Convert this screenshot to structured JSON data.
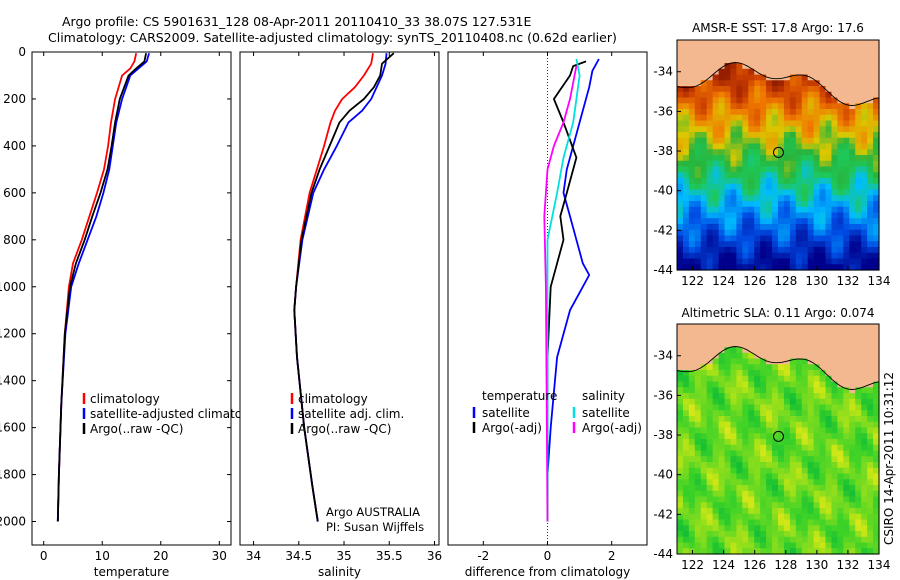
{
  "header": {
    "line1": "Argo profile: CS 5901631_128 08-Apr-2011 20110410_33 38.07S 127.531E",
    "line2": "Climatology: CARS2009. Satellite-adjusted climatology: synTS_20110408.nc (0.62d earlier)"
  },
  "side_label": "CSIRO 14-Apr-2011 10:31:12",
  "colors": {
    "climatology": "#ff0000",
    "satellite": "#0000ff",
    "argo": "#000000",
    "cyan": "#00e0e0",
    "magenta": "#ff00ff",
    "land": "#f4b890"
  },
  "chart_data": [
    {
      "type": "line",
      "id": "temperature",
      "xlabel": "temperature",
      "ylabel": "",
      "xlim": [
        -2,
        32
      ],
      "ylim": [
        2100,
        0
      ],
      "xticks": [
        0,
        10,
        20,
        30
      ],
      "yticks": [
        0,
        200,
        400,
        600,
        800,
        1000,
        1200,
        1400,
        1600,
        1800,
        2000
      ],
      "legend": {
        "position": "lower-right",
        "entries": [
          "climatology",
          "satellite-adjusted climatology",
          "Argo(..raw -QC)"
        ]
      },
      "series": [
        {
          "name": "climatology",
          "color": "#ff0000",
          "x": [
            15.8,
            15.5,
            14.8,
            13.4,
            12.2,
            11.5,
            11.0,
            10.3,
            9.1,
            7.8,
            6.5,
            5.0,
            4.3,
            3.6,
            3.0,
            2.6,
            2.4
          ],
          "y": [
            5,
            40,
            70,
            100,
            200,
            300,
            400,
            500,
            600,
            700,
            800,
            900,
            1000,
            1200,
            1500,
            1800,
            2000
          ]
        },
        {
          "name": "satellite-adjusted climatology",
          "color": "#0000ff",
          "x": [
            18.0,
            17.6,
            16.2,
            14.8,
            13.4,
            12.4,
            11.8,
            11.2,
            10.2,
            9.0,
            7.5,
            6.0,
            4.7,
            3.7,
            3.0,
            2.6,
            2.4
          ],
          "y": [
            5,
            40,
            70,
            100,
            200,
            300,
            400,
            500,
            600,
            700,
            800,
            900,
            1000,
            1200,
            1500,
            1800,
            2000
          ]
        },
        {
          "name": "Argo(..raw -QC)",
          "color": "#000000",
          "x": [
            17.5,
            17.2,
            15.8,
            14.5,
            13.0,
            12.2,
            11.6,
            10.9,
            9.7,
            8.3,
            7.0,
            5.5,
            4.5,
            3.6,
            3.0,
            2.6,
            2.4
          ],
          "y": [
            5,
            40,
            70,
            100,
            200,
            300,
            400,
            500,
            600,
            700,
            800,
            900,
            1000,
            1200,
            1500,
            1800,
            2000
          ]
        }
      ]
    },
    {
      "type": "line",
      "id": "salinity",
      "xlabel": "salinity",
      "ylabel": "",
      "xlim": [
        33.85,
        36.05
      ],
      "ylim": [
        2100,
        0
      ],
      "xticks": [
        34,
        34.5,
        35,
        35.5,
        36
      ],
      "yticks": [],
      "legend": {
        "position": "lower-right",
        "entries": [
          "climatology",
          "satellite adj. clim.",
          "Argo(..raw -QC)"
        ]
      },
      "annotation": [
        "Argo AUSTRALIA",
        "PI: Susan Wijffels"
      ],
      "series": [
        {
          "name": "climatology",
          "color": "#ff0000",
          "x": [
            35.32,
            35.3,
            35.22,
            35.12,
            34.98,
            34.9,
            34.85,
            34.78,
            34.7,
            34.62,
            34.52,
            34.47,
            34.45,
            34.48,
            34.56,
            34.65,
            34.71
          ],
          "y": [
            5,
            50,
            100,
            150,
            200,
            250,
            300,
            400,
            500,
            600,
            800,
            1000,
            1100,
            1300,
            1600,
            1850,
            2000
          ]
        },
        {
          "name": "satellite adj. clim.",
          "color": "#0000ff",
          "x": [
            35.47,
            35.46,
            35.42,
            35.36,
            35.3,
            35.2,
            35.05,
            34.92,
            34.78,
            34.66,
            34.54,
            34.47,
            34.45,
            34.48,
            34.56,
            34.65,
            34.71
          ],
          "y": [
            5,
            50,
            100,
            150,
            200,
            250,
            300,
            400,
            500,
            600,
            800,
            1000,
            1100,
            1300,
            1600,
            1850,
            2000
          ]
        },
        {
          "name": "Argo(..raw -QC)",
          "color": "#000000",
          "x": [
            35.55,
            35.42,
            35.4,
            35.33,
            35.22,
            35.06,
            34.95,
            34.84,
            34.73,
            34.64,
            34.53,
            34.47,
            34.45,
            34.48,
            34.56,
            34.65,
            34.71
          ],
          "y": [
            5,
            50,
            100,
            150,
            200,
            250,
            300,
            400,
            500,
            600,
            800,
            1000,
            1100,
            1300,
            1600,
            1850,
            2000
          ]
        }
      ]
    },
    {
      "type": "line",
      "id": "difference",
      "xlabel": "difference from climatology",
      "ylabel": "",
      "xlim": [
        -3.1,
        3.1
      ],
      "ylim": [
        2100,
        0
      ],
      "xticks": [
        -2,
        0,
        2
      ],
      "yticks": [],
      "legend": {
        "position": "lower-right",
        "headers": [
          "temperature",
          "salinity"
        ],
        "entries": [
          "satellite",
          "Argo(-adj)",
          "satellite",
          "Argo(-adj)"
        ]
      },
      "series": [
        {
          "name": "temperature satellite",
          "color": "#0000ff",
          "x": [
            1.6,
            1.4,
            1.3,
            1.0,
            0.6,
            0.5,
            0.7,
            0.9,
            1.1,
            1.3,
            1.1,
            0.7,
            0.3,
            0.1,
            0.0,
            0.0
          ],
          "y": [
            30,
            80,
            150,
            300,
            500,
            600,
            700,
            800,
            900,
            950,
            1000,
            1100,
            1300,
            1600,
            1800,
            2000
          ]
        },
        {
          "name": "temperature Argo(-adj)",
          "color": "#000000",
          "x": [
            1.2,
            0.8,
            0.7,
            0.2,
            0.5,
            0.9,
            0.6,
            0.4,
            0.5,
            0.3,
            0.1,
            0.0,
            0.0
          ],
          "y": [
            40,
            60,
            100,
            200,
            300,
            450,
            600,
            700,
            800,
            900,
            1000,
            1300,
            2000
          ]
        },
        {
          "name": "salinity satellite",
          "color": "#00e0e0",
          "x": [
            0.9,
            1.0,
            0.8,
            0.5,
            0.3,
            0.0,
            0.0,
            0.0
          ],
          "y": [
            30,
            100,
            300,
            450,
            600,
            800,
            1200,
            2000
          ]
        },
        {
          "name": "salinity Argo(-adj)",
          "color": "#ff00ff",
          "x": [
            0.9,
            0.7,
            0.5,
            0.2,
            0.0,
            -0.1,
            -0.05,
            0.0
          ],
          "y": [
            60,
            200,
            300,
            400,
            500,
            700,
            1000,
            2000
          ]
        }
      ]
    },
    {
      "type": "heatmap",
      "id": "sst-map",
      "title": "AMSR-E SST: 17.8 Argo: 17.6",
      "xlim": [
        121,
        134
      ],
      "ylim": [
        -44,
        -32.4
      ],
      "xticks": [
        122,
        124,
        126,
        128,
        130,
        132,
        134
      ],
      "yticks": [
        -34,
        -36,
        -38,
        -40,
        -42,
        -44
      ],
      "marker": {
        "lon": 127.531,
        "lat": -38.07
      }
    },
    {
      "type": "heatmap",
      "id": "sla-map",
      "title": "Altimetric SLA: 0.11 Argo: 0.074",
      "xlim": [
        121,
        134
      ],
      "ylim": [
        -44,
        -32.4
      ],
      "xticks": [
        122,
        124,
        126,
        128,
        130,
        132,
        134
      ],
      "yticks": [
        -34,
        -36,
        -38,
        -40,
        -42,
        -44
      ],
      "marker": {
        "lon": 127.531,
        "lat": -38.07
      }
    }
  ]
}
